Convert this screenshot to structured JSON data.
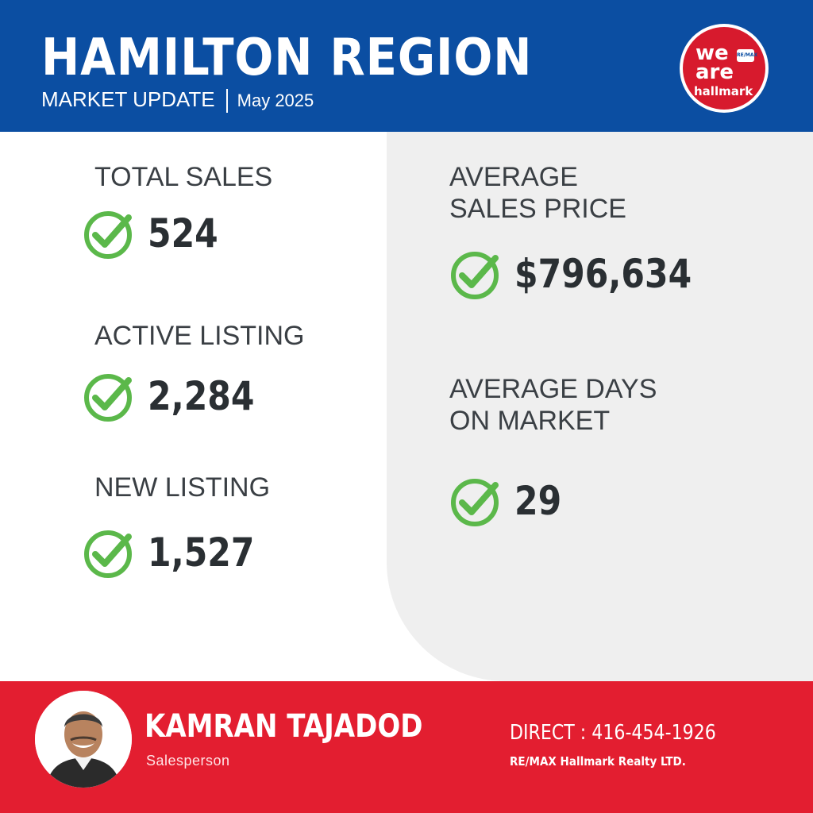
{
  "header": {
    "title": "HAMILTON REGION",
    "subtitle": "MARKET UPDATE",
    "date": "May 2025",
    "logo": {
      "line1": "we",
      "line2": "are",
      "line3": "hallmark",
      "badge": "RE/MAX"
    }
  },
  "stats": {
    "total_sales": {
      "label": "TOTAL SALES",
      "value": "524"
    },
    "active_listing": {
      "label": "ACTIVE LISTING",
      "value": "2,284"
    },
    "new_listing": {
      "label": "NEW LISTING",
      "value": "1,527"
    },
    "avg_price": {
      "label": "AVERAGE\nSALES PRICE",
      "value": "$796,634"
    },
    "avg_days": {
      "label": "AVERAGE DAYS\nON MARKET",
      "value": "29"
    }
  },
  "agent": {
    "name": "KAMRAN TAJADOD",
    "role": "Salesperson",
    "phone": "DIRECT : 416-454-1926",
    "company": "RE/MAX Hallmark Realty LTD."
  },
  "colors": {
    "header_blue": "#0b4ea2",
    "footer_red": "#e31e30",
    "check_green": "#5bb84a",
    "panel_grey": "#efefef"
  },
  "icons": {
    "check": "check-circle-icon",
    "logo": "remax-logo"
  }
}
